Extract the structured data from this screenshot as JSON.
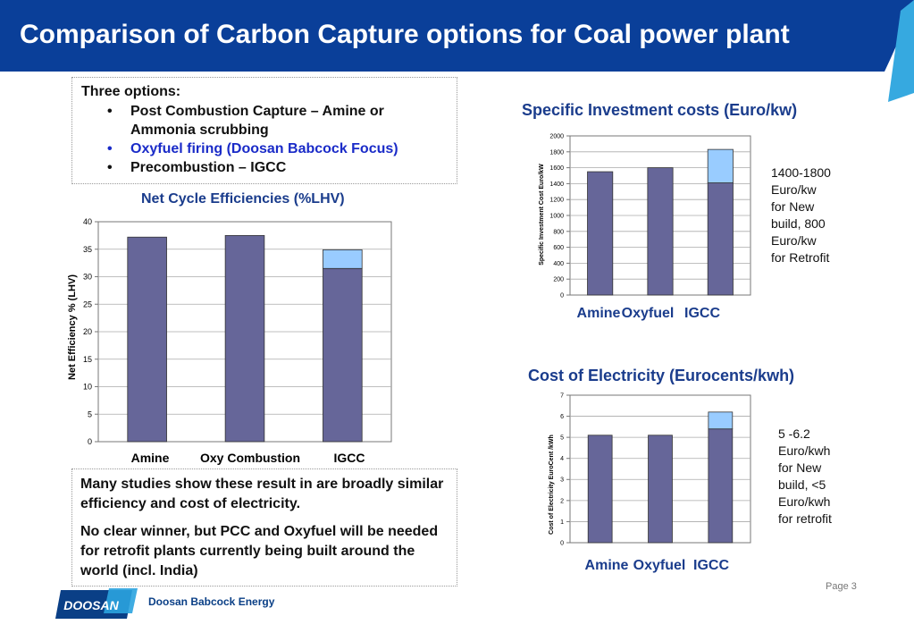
{
  "slide": {
    "title": "Comparison of Carbon Capture options for Coal power plant",
    "page": "Page 3"
  },
  "options_box": {
    "heading": "Three options:",
    "items": [
      "Post Combustion Capture – Amine or Ammonia scrubbing",
      "Oxyfuel firing (Doosan Babcock Focus)",
      "Precombustion – IGCC"
    ]
  },
  "summary_box": {
    "paragraphs": [
      "Many studies show these result in are broadly similar efficiency and cost of electricity.",
      "No clear winner, but PCC and Oxyfuel will be needed for retrofit plants currently being built around the world (incl. India)"
    ]
  },
  "notes": {
    "investment": [
      "1400-1800",
      "Euro/kw",
      "for New",
      "build, 800",
      "Euro/kw",
      "for Retrofit"
    ],
    "electricity": [
      "5 -6.2",
      "Euro/kwh",
      "for New",
      "build, <5",
      "Euro/kwh",
      "for retrofit"
    ]
  },
  "brand": {
    "logo_text": "DOOSAN",
    "company": "Doosan Babcock Energy",
    "colors": {
      "header": "#0a3f99",
      "bar": "#666699",
      "bar_upper": "#99ccff",
      "title_blue": "#1a3c8c",
      "highlight": "#1a2bc8"
    }
  },
  "chart_data": [
    {
      "type": "bar",
      "title": "Net Cycle Efficiencies (%LHV)",
      "ylabel": "Net Efficiency % (LHV)",
      "categories": [
        "Amine",
        "Oxy Combustion",
        "IGCC"
      ],
      "series": [
        {
          "values": [
            37.2,
            37.5,
            31.5
          ]
        },
        {
          "values": [
            0,
            0,
            3.4
          ]
        }
      ],
      "ylim": [
        0,
        40
      ],
      "yticks": [
        0,
        5,
        10,
        15,
        20,
        25,
        30,
        35,
        40
      ],
      "grid": true
    },
    {
      "type": "bar",
      "title": "Specific Investment costs (Euro/kw)",
      "ylabel": "Specific Investment Cost Euro/kW",
      "categories": [
        "Amine",
        "Oxyfuel",
        "IGCC"
      ],
      "series": [
        {
          "values": [
            1550,
            1600,
            1410
          ]
        },
        {
          "values": [
            0,
            0,
            420
          ]
        }
      ],
      "ylim": [
        0,
        2000
      ],
      "yticks": [
        0,
        200,
        400,
        600,
        800,
        1000,
        1200,
        1400,
        1600,
        1800,
        2000
      ],
      "grid": true
    },
    {
      "type": "bar",
      "title": "Cost of Electricity (Eurocents/kwh)",
      "ylabel": "Cost of Electricity EuroCent /kWh",
      "categories": [
        "Amine",
        "Oxyfuel",
        "IGCC"
      ],
      "series": [
        {
          "values": [
            5.1,
            5.1,
            5.4
          ]
        },
        {
          "values": [
            0,
            0,
            0.8
          ]
        }
      ],
      "ylim": [
        0,
        7
      ],
      "yticks": [
        0,
        1,
        2,
        3,
        4,
        5,
        6,
        7
      ],
      "grid": true
    }
  ]
}
